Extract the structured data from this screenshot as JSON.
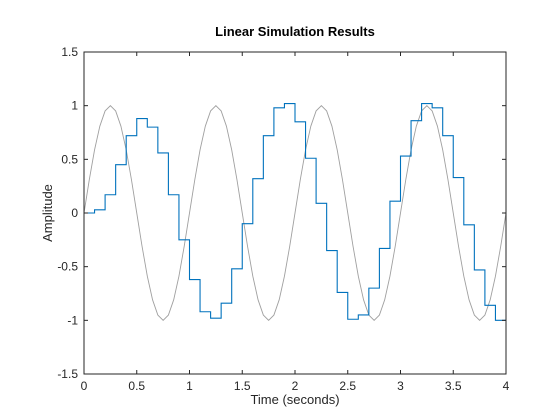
{
  "chart_data": {
    "type": "line",
    "title": "Linear Simulation Results",
    "xlabel": "Time (seconds)",
    "ylabel": "Amplitude",
    "xlim": [
      0,
      4
    ],
    "ylim": [
      -1.5,
      1.5
    ],
    "xticks": [
      0,
      0.5,
      1,
      1.5,
      2,
      2.5,
      3,
      3.5,
      4
    ],
    "yticks": [
      -1.5,
      -1,
      -0.5,
      0,
      0.5,
      1,
      1.5
    ],
    "xtick_labels": [
      "0",
      "0.5",
      "1",
      "1.5",
      "2",
      "2.5",
      "3",
      "3.5",
      "4"
    ],
    "ytick_labels": [
      "-1.5",
      "-1",
      "-0.5",
      "0",
      "0.5",
      "1",
      "1.5"
    ],
    "grid": false,
    "series": [
      {
        "kind": "input",
        "style": "smooth",
        "color": "#a0a0a0",
        "x": [
          0,
          0.05,
          0.1,
          0.15,
          0.2,
          0.25,
          0.3,
          0.35,
          0.4,
          0.45,
          0.5,
          0.55,
          0.6,
          0.65,
          0.7,
          0.75,
          0.8,
          0.85,
          0.9,
          0.95,
          1,
          1.05,
          1.1,
          1.15,
          1.2,
          1.25,
          1.3,
          1.35,
          1.4,
          1.45,
          1.5,
          1.55,
          1.6,
          1.65,
          1.7,
          1.75,
          1.8,
          1.85,
          1.9,
          1.95,
          2,
          2.05,
          2.1,
          2.15,
          2.2,
          2.25,
          2.3,
          2.35,
          2.4,
          2.45,
          2.5,
          2.55,
          2.6,
          2.65,
          2.7,
          2.75,
          2.8,
          2.85,
          2.9,
          2.95,
          3,
          3.05,
          3.1,
          3.15,
          3.2,
          3.25,
          3.3,
          3.35,
          3.4,
          3.45,
          3.5,
          3.55,
          3.6,
          3.65,
          3.7,
          3.75,
          3.8,
          3.85,
          3.9,
          3.95,
          4
        ],
        "y": [
          0,
          0.309,
          0.588,
          0.809,
          0.951,
          1,
          0.951,
          0.809,
          0.588,
          0.309,
          0,
          -0.309,
          -0.588,
          -0.809,
          -0.951,
          -1,
          -0.951,
          -0.809,
          -0.588,
          -0.309,
          0,
          0.309,
          0.588,
          0.809,
          0.951,
          1,
          0.951,
          0.809,
          0.588,
          0.309,
          0,
          -0.309,
          -0.588,
          -0.809,
          -0.951,
          -1,
          -0.951,
          -0.809,
          -0.588,
          -0.309,
          0,
          0.309,
          0.588,
          0.809,
          0.951,
          1,
          0.951,
          0.809,
          0.588,
          0.309,
          0,
          -0.309,
          -0.588,
          -0.809,
          -0.951,
          -1,
          -0.951,
          -0.809,
          -0.588,
          -0.309,
          0,
          0.309,
          0.588,
          0.809,
          0.951,
          1,
          0.951,
          0.809,
          0.588,
          0.309,
          0,
          -0.309,
          -0.588,
          -0.809,
          -0.951,
          -1,
          -0.951,
          -0.809,
          -0.588,
          -0.309,
          0
        ]
      },
      {
        "kind": "response",
        "style": "stairs",
        "color": "#0072bd",
        "x": [
          0,
          0.1,
          0.2,
          0.3,
          0.4,
          0.5,
          0.6,
          0.7,
          0.8,
          0.9,
          1,
          1.1,
          1.2,
          1.3,
          1.4,
          1.5,
          1.6,
          1.7,
          1.8,
          1.9,
          2,
          2.1,
          2.2,
          2.3,
          2.4,
          2.5,
          2.6,
          2.7,
          2.8,
          2.9,
          3,
          3.1,
          3.2,
          3.3,
          3.4,
          3.5,
          3.6,
          3.7,
          3.8,
          3.9,
          4
        ],
        "y": [
          0,
          0.03,
          0.17,
          0.45,
          0.72,
          0.88,
          0.8,
          0.56,
          0.17,
          -0.25,
          -0.62,
          -0.92,
          -0.98,
          -0.84,
          -0.52,
          -0.1,
          0.32,
          0.72,
          0.98,
          1.02,
          0.85,
          0.51,
          0.09,
          -0.35,
          -0.74,
          -0.99,
          -0.95,
          -0.7,
          -0.33,
          0.11,
          0.53,
          0.86,
          1.02,
          0.98,
          0.72,
          0.33,
          -0.11,
          -0.53,
          -0.86,
          -1,
          -1
        ]
      }
    ]
  }
}
